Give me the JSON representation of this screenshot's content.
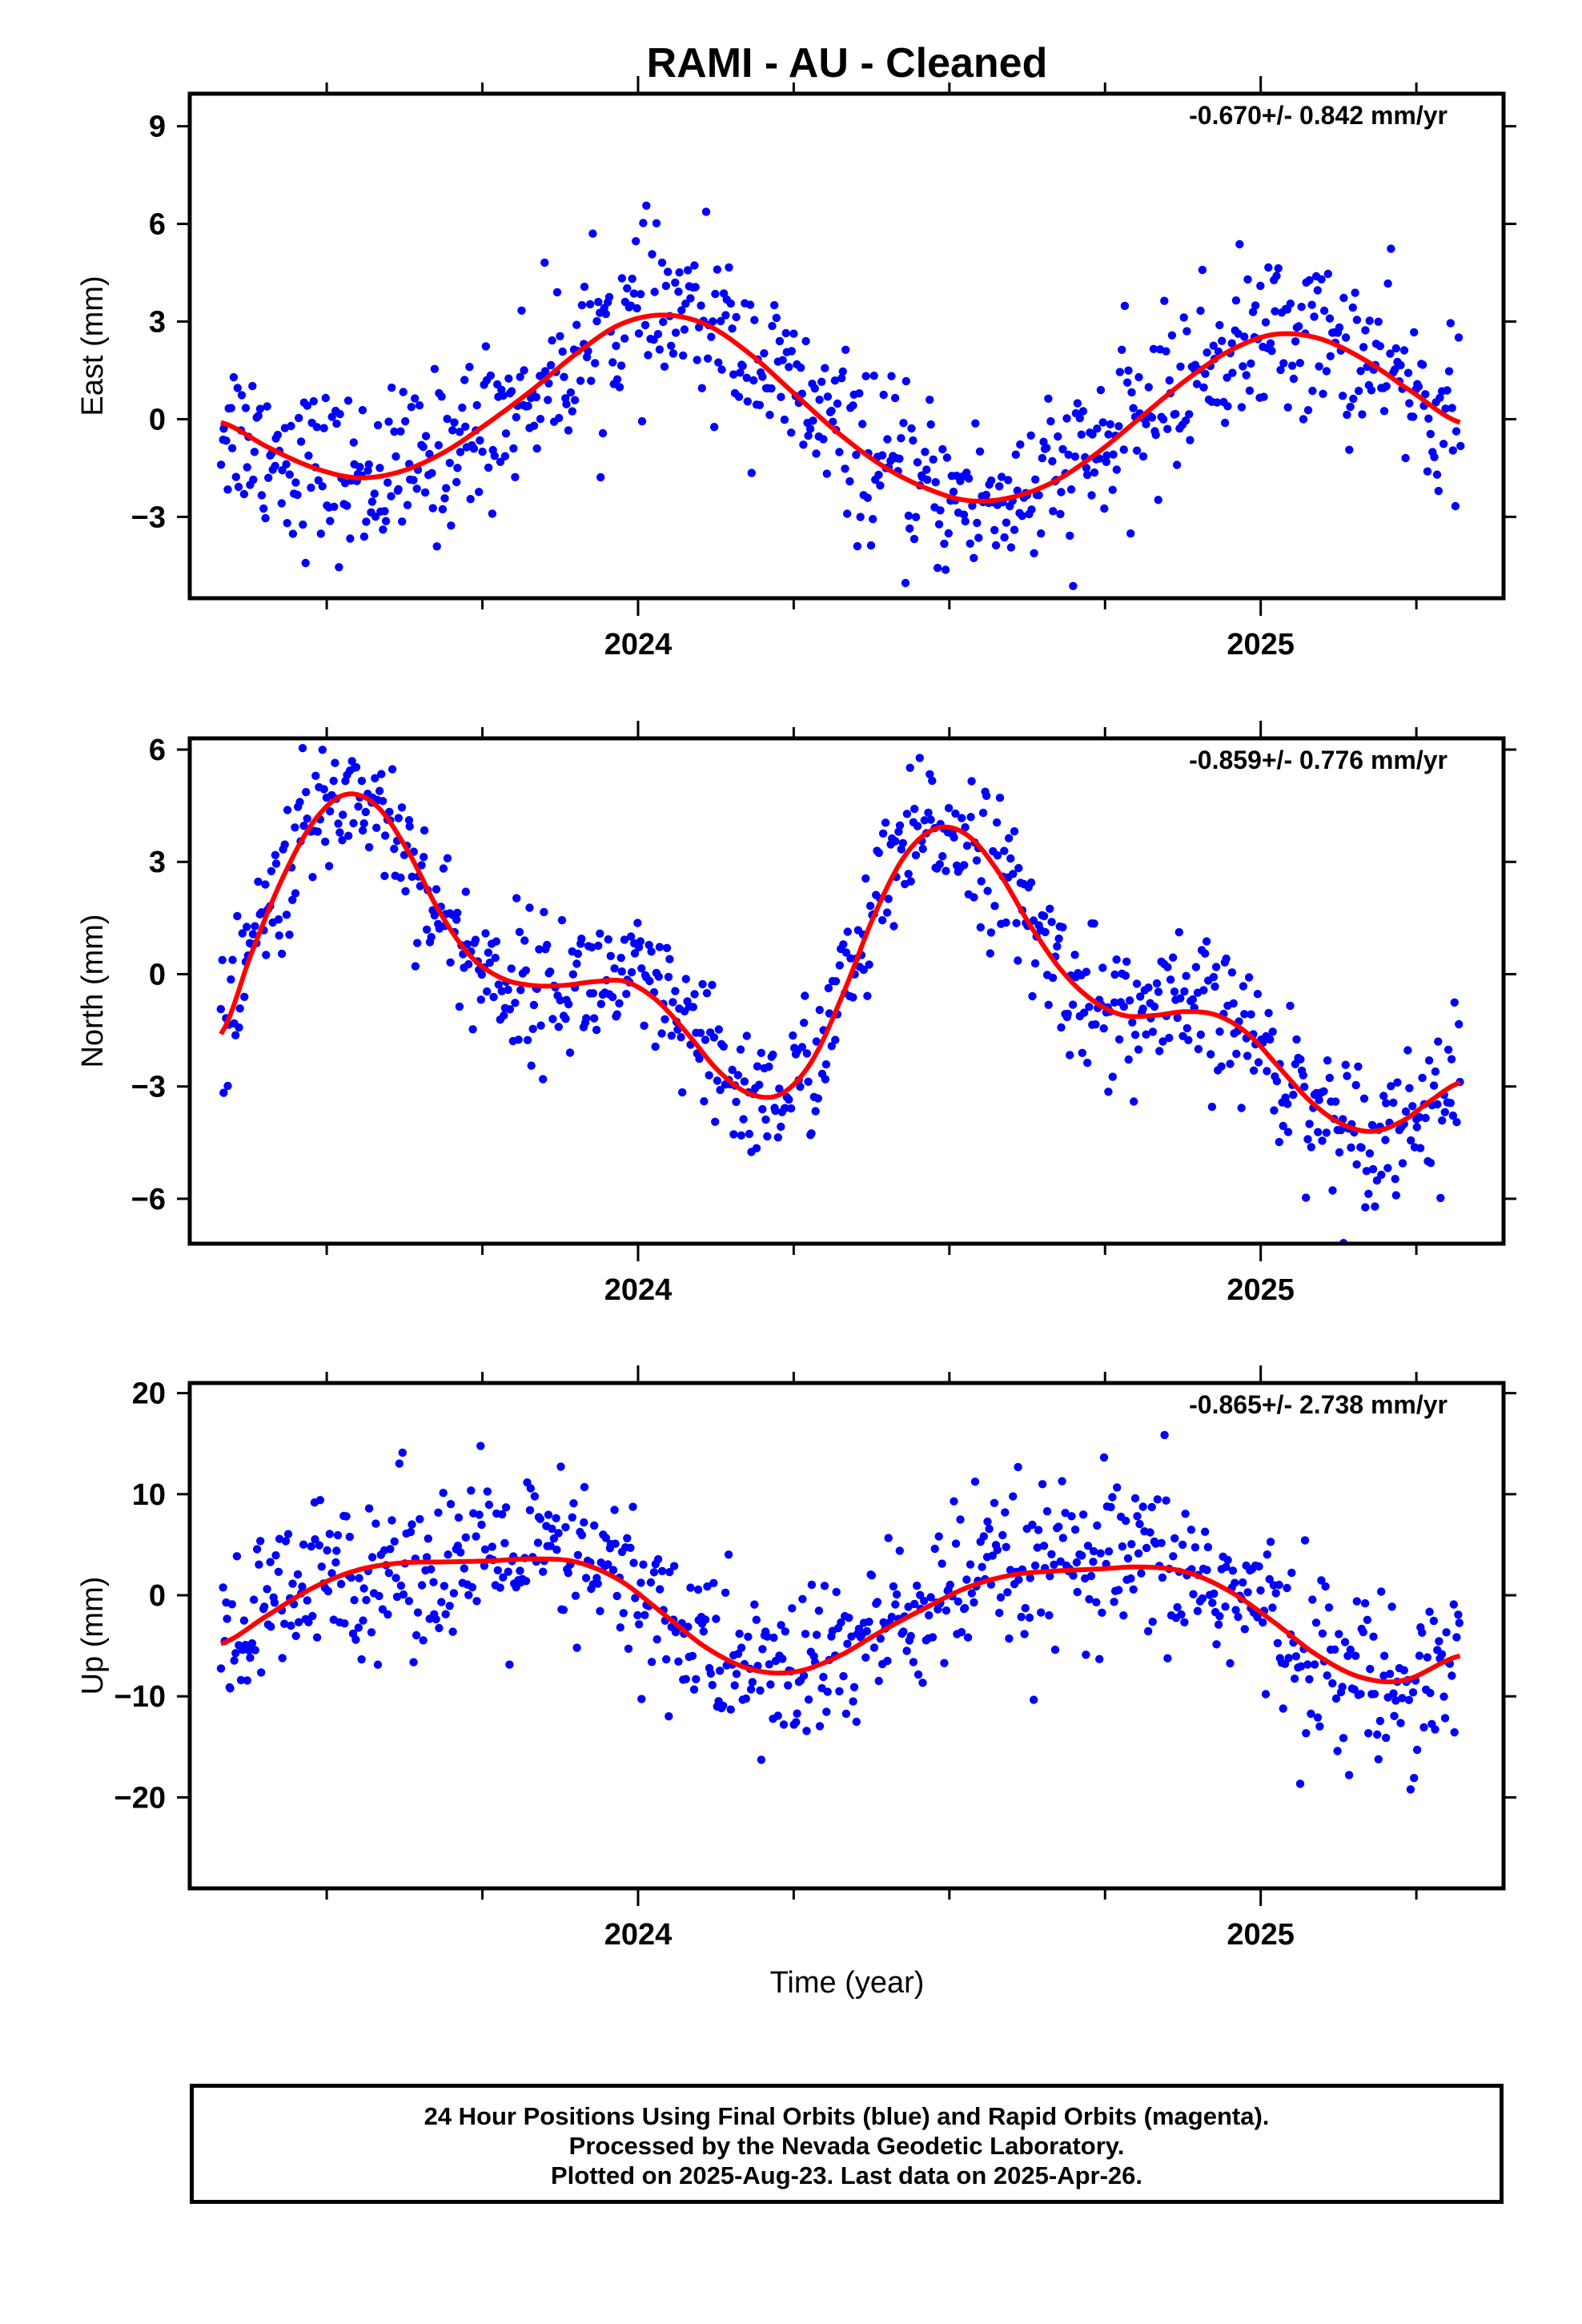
{
  "chart_data": {
    "type": "scatter",
    "title": "RAMI  - AU - Cleaned",
    "xlabel": "Time (year)",
    "x_tick_labels": [
      "2024",
      "2025"
    ],
    "xlim": [
      2023.28,
      2025.39
    ],
    "colors": {
      "points": "#0000ff",
      "fit": "#ff0000",
      "frame": "#000000"
    },
    "panels": [
      {
        "ylabel": "East (mm)",
        "ylim": [
          -5.5,
          10
        ],
        "yticks": [
          9,
          6,
          3,
          0,
          -3
        ],
        "ytick_labels": [
          "9",
          "6",
          "3",
          "0",
          "−3"
        ],
        "rate": "-0.670+/- 0.842 mm/yr",
        "fit_curve": {
          "x": [
            2023.33,
            2023.41,
            2023.48,
            2023.55,
            2023.62,
            2023.69,
            2023.76,
            2023.83,
            2023.9,
            2023.97,
            2024.04,
            2024.11,
            2024.18,
            2024.25,
            2024.32,
            2024.39,
            2024.46,
            2024.53,
            2024.6,
            2024.67,
            2024.74,
            2024.81,
            2024.88,
            2024.95,
            2025.02,
            2025.09,
            2025.16,
            2025.23,
            2025.32
          ],
          "y": [
            -0.1,
            -0.9,
            -1.5,
            -1.8,
            -1.6,
            -1.0,
            -0.1,
            0.9,
            2.0,
            2.9,
            3.2,
            2.9,
            2.0,
            0.8,
            -0.4,
            -1.4,
            -2.1,
            -2.5,
            -2.4,
            -1.9,
            -1.0,
            0.1,
            1.2,
            2.1,
            2.6,
            2.5,
            1.9,
            1.0,
            -0.1
          ]
        },
        "points": {
          "x_start": 2023.33,
          "x_end": 2025.32,
          "approx_count": 760
        }
      },
      {
        "ylabel": "North (mm)",
        "ylim": [
          -7.2,
          6.3
        ],
        "yticks": [
          6,
          3,
          0,
          -3,
          -6
        ],
        "ytick_labels": [
          "6",
          "3",
          "0",
          "−3",
          "−6"
        ],
        "rate": "-0.859+/- 0.776 mm/yr",
        "fit_curve": {
          "x": [
            2023.33,
            2023.38,
            2023.43,
            2023.48,
            2023.53,
            2023.58,
            2023.63,
            2023.68,
            2023.73,
            2023.78,
            2023.83,
            2023.88,
            2023.93,
            2023.98,
            2024.03,
            2024.08,
            2024.13,
            2024.18,
            2024.23,
            2024.28,
            2024.33,
            2024.38,
            2024.43,
            2024.48,
            2024.53,
            2024.58,
            2024.63,
            2024.68,
            2024.73,
            2024.78,
            2024.83,
            2024.88,
            2024.93,
            2024.98,
            2025.03,
            2025.08,
            2025.13,
            2025.18,
            2025.23,
            2025.28,
            2025.32
          ],
          "y": [
            -1.6,
            0.6,
            2.6,
            4.1,
            4.8,
            4.5,
            3.3,
            1.7,
            0.5,
            -0.1,
            -0.3,
            -0.3,
            -0.2,
            -0.2,
            -0.7,
            -1.6,
            -2.6,
            -3.2,
            -3.2,
            -2.3,
            -0.5,
            1.6,
            3.2,
            3.9,
            3.7,
            2.7,
            1.3,
            0.1,
            -0.7,
            -1.1,
            -1.1,
            -1.0,
            -1.1,
            -1.6,
            -2.5,
            -3.4,
            -4.0,
            -4.2,
            -3.9,
            -3.3,
            -2.9
          ]
        },
        "points": {
          "x_start": 2023.33,
          "x_end": 2025.32,
          "approx_count": 760
        }
      },
      {
        "ylabel": "Up (mm)",
        "ylim": [
          -29,
          21
        ],
        "yticks": [
          20,
          10,
          0,
          -10,
          -20
        ],
        "ytick_labels": [
          "20",
          "10",
          "0",
          "−10",
          "−20"
        ],
        "rate": "-0.865+/- 2.738 mm/yr",
        "fit_curve": {
          "x": [
            2023.33,
            2023.41,
            2023.48,
            2023.55,
            2023.62,
            2023.69,
            2023.76,
            2023.83,
            2023.9,
            2023.97,
            2024.04,
            2024.11,
            2024.18,
            2024.25,
            2024.32,
            2024.39,
            2024.46,
            2024.53,
            2024.6,
            2024.67,
            2024.74,
            2024.81,
            2024.88,
            2024.95,
            2025.02,
            2025.09,
            2025.16,
            2025.23,
            2025.32
          ],
          "y": [
            -4.8,
            -1.8,
            0.8,
            2.5,
            3.2,
            3.3,
            3.4,
            3.6,
            3.3,
            1.5,
            -1.8,
            -5.2,
            -7.3,
            -7.6,
            -6.1,
            -3.6,
            -1.3,
            0.8,
            2.0,
            2.4,
            2.6,
            2.8,
            2.3,
            0.4,
            -2.6,
            -5.9,
            -8.1,
            -8.4,
            -6.0
          ]
        },
        "points": {
          "x_start": 2023.33,
          "x_end": 2025.32,
          "approx_count": 760
        }
      }
    ]
  },
  "footer": {
    "line1": "24 Hour Positions Using Final Orbits (blue) and Rapid Orbits (magenta).",
    "line2": "Processed by the Nevada Geodetic Laboratory.",
    "line3": "Plotted on 2025-Aug-23. Last data on 2025-Apr-26."
  }
}
